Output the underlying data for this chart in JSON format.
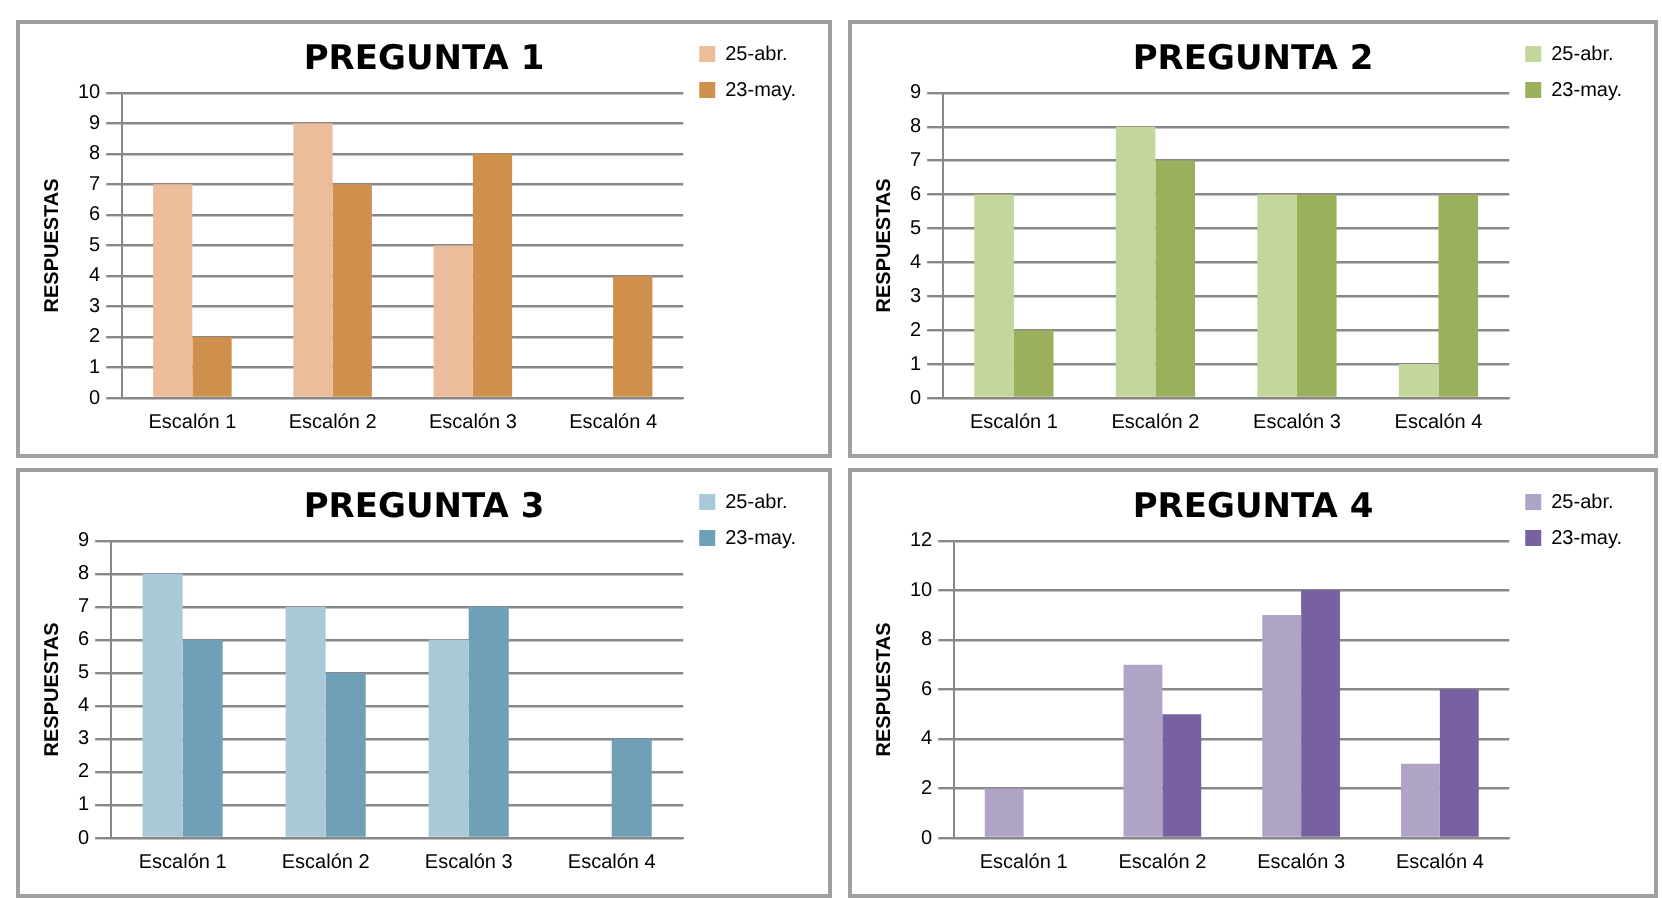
{
  "chart_data": [
    {
      "type": "bar",
      "title": "PREGUNTA 1",
      "ylabel": "RESPUESTAS",
      "categories": [
        "Escalón 1",
        "Escalón 2",
        "Escalón 3",
        "Escalón 4"
      ],
      "series": [
        {
          "name": "25-abr.",
          "color": "#ebbd9a",
          "values": [
            7,
            9,
            5,
            0
          ]
        },
        {
          "name": "23-may.",
          "color": "#cf8f4d",
          "values": [
            2,
            7,
            8,
            4
          ]
        }
      ],
      "ylim": [
        0,
        10
      ],
      "yticks": [
        0,
        1,
        2,
        3,
        4,
        5,
        6,
        7,
        8,
        9,
        10
      ],
      "grid": "y",
      "legend": "right"
    },
    {
      "type": "bar",
      "title": "PREGUNTA 2",
      "ylabel": "RESPUESTAS",
      "categories": [
        "Escalón 1",
        "Escalón 2",
        "Escalón 3",
        "Escalón 4"
      ],
      "series": [
        {
          "name": "25-abr.",
          "color": "#c3d69b",
          "values": [
            6,
            8,
            6,
            1
          ]
        },
        {
          "name": "23-may.",
          "color": "#9bb05c",
          "values": [
            2,
            7,
            6,
            6
          ]
        }
      ],
      "ylim": [
        0,
        9
      ],
      "yticks": [
        0,
        1,
        2,
        3,
        4,
        5,
        6,
        7,
        8,
        9
      ],
      "grid": "y",
      "legend": "right"
    },
    {
      "type": "bar",
      "title": "PREGUNTA 3",
      "ylabel": "RESPUESTAS",
      "categories": [
        "Escalón 1",
        "Escalón 2",
        "Escalón 3",
        "Escalón 4"
      ],
      "series": [
        {
          "name": "25-abr.",
          "color": "#a9c9d9",
          "values": [
            8,
            7,
            6,
            0
          ]
        },
        {
          "name": "23-may.",
          "color": "#6fa0b7",
          "values": [
            6,
            5,
            7,
            3
          ]
        }
      ],
      "ylim": [
        0,
        9
      ],
      "yticks": [
        0,
        1,
        2,
        3,
        4,
        5,
        6,
        7,
        8,
        9
      ],
      "grid": "y",
      "legend": "right"
    },
    {
      "type": "bar",
      "title": "PREGUNTA 4",
      "ylabel": "RESPUESTAS",
      "categories": [
        "Escalón 1",
        "Escalón 2",
        "Escalón 3",
        "Escalón 4"
      ],
      "series": [
        {
          "name": "25-abr.",
          "color": "#b0a4c6",
          "values": [
            2,
            7,
            9,
            3
          ]
        },
        {
          "name": "23-may.",
          "color": "#7761a0",
          "values": [
            0,
            5,
            10,
            6
          ]
        }
      ],
      "ylim": [
        0,
        12
      ],
      "yticks": [
        0,
        2,
        4,
        6,
        8,
        10,
        12
      ],
      "grid": "y",
      "legend": "right"
    }
  ]
}
